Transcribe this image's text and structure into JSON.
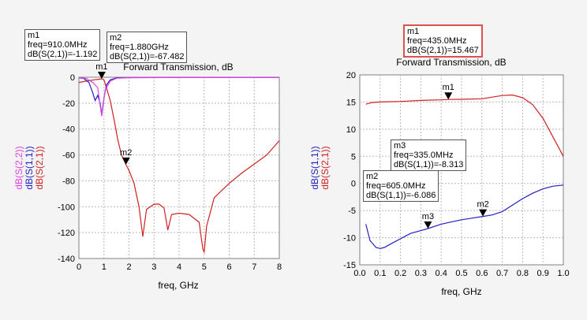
{
  "charts": [
    {
      "title": "Forward Transmission, dB",
      "xlabel": "freq, GHz",
      "ylabels": [
        {
          "text": "dB(S(2,2))",
          "color": "#e040e0"
        },
        {
          "text": "dB(S(1,1))",
          "color": "#2020c0"
        },
        {
          "text": "dB(S(2,1))",
          "color": "#d02020"
        }
      ],
      "x_ticks": [
        "0",
        "1",
        "2",
        "3",
        "4",
        "5",
        "6",
        "7",
        "8"
      ],
      "y_ticks": [
        "0",
        "-20",
        "-40",
        "-60",
        "-80",
        "-100",
        "-120",
        "-140"
      ],
      "markers": [
        {
          "name": "m1",
          "lines": [
            "m1",
            "freq=910.0MHz",
            "dB(S(2,1))=-1.192"
          ],
          "selected": false
        },
        {
          "name": "m2",
          "lines": [
            "m2",
            "freq=1.880GHz",
            "dB(S(2,1))=-67.482"
          ],
          "selected": false
        }
      ]
    },
    {
      "title": "Forward Transmission, dB",
      "xlabel": "freq, GHz",
      "ylabels": [
        {
          "text": "dB(S(1,1))",
          "color": "#2020c0"
        },
        {
          "text": "dB(S(2,1))",
          "color": "#d02020"
        }
      ],
      "x_ticks": [
        "0.0",
        "0.1",
        "0.2",
        "0.3",
        "0.4",
        "0.5",
        "0.6",
        "0.7",
        "0.8",
        "0.9",
        "1.0"
      ],
      "y_ticks": [
        "20",
        "15",
        "10",
        "5",
        "0",
        "-5",
        "-10",
        "-15"
      ],
      "markers": [
        {
          "name": "m1",
          "lines": [
            "m1",
            "freq=435.0MHz",
            "dB(S(2,1))=15.467"
          ],
          "selected": true
        },
        {
          "name": "m3",
          "lines": [
            "m3",
            "freq=335.0MHz",
            "dB(S(1,1))=-8.313"
          ],
          "selected": false
        },
        {
          "name": "m2",
          "lines": [
            "m2",
            "freq=605.0MHz",
            "dB(S(1,1))=-6.086"
          ],
          "selected": false
        }
      ]
    }
  ],
  "chart_data": [
    {
      "type": "line",
      "title": "Forward Transmission, dB",
      "xlabel": "freq, GHz",
      "ylabel": "dB(S(2,2)) dB(S(1,1)) dB(S(2,1))",
      "xlim": [
        0,
        8
      ],
      "ylim": [
        -140,
        0
      ],
      "grid": true,
      "series": [
        {
          "name": "dB(S(2,1))",
          "color": "#d02020",
          "x": [
            0,
            0.3,
            0.6,
            0.8,
            0.91,
            1.0,
            1.1,
            1.25,
            1.4,
            1.55,
            1.7,
            1.8,
            1.88,
            2.0,
            2.2,
            2.4,
            2.55,
            2.7,
            3.0,
            3.2,
            3.4,
            3.55,
            3.7,
            4.0,
            4.4,
            4.8,
            4.95,
            5.0,
            5.1,
            5.4,
            6.0,
            6.5,
            7.0,
            7.5,
            8.0
          ],
          "y": [
            -4,
            -3,
            -2,
            -1.5,
            -1.192,
            -2,
            -8,
            -18,
            -32,
            -48,
            -60,
            -64,
            -67.482,
            -72,
            -82,
            -100,
            -123,
            -102,
            -98,
            -98,
            -101,
            -118,
            -106,
            -105,
            -106,
            -112,
            -133,
            -135,
            -115,
            -93,
            -82,
            -74,
            -67,
            -60,
            -49
          ]
        },
        {
          "name": "dB(S(1,1))",
          "color": "#2020c0",
          "x": [
            0,
            0.2,
            0.4,
            0.55,
            0.65,
            0.75,
            0.85,
            0.91,
            1.0,
            1.1,
            1.25,
            1.5,
            2.0,
            4.0,
            8.0
          ],
          "y": [
            -0.5,
            -1,
            -4,
            -12,
            -18,
            -14,
            -20,
            -29,
            -16,
            -6,
            -2,
            -0.5,
            -0.3,
            -0.2,
            -0.2
          ]
        },
        {
          "name": "dB(S(2,2))",
          "color": "#e040e0",
          "x": [
            0,
            0.3,
            0.55,
            0.75,
            0.91,
            1.05,
            1.25,
            1.5,
            2.0,
            8.0
          ],
          "y": [
            -0.3,
            -1,
            -4,
            -8,
            -30,
            -10,
            -3,
            -0.8,
            -0.3,
            -0.2
          ]
        }
      ],
      "markers": [
        {
          "name": "m1",
          "x": 0.91,
          "y": -1.192
        },
        {
          "name": "m2",
          "x": 1.88,
          "y": -67.482
        }
      ]
    },
    {
      "type": "line",
      "title": "Forward Transmission, dB",
      "xlabel": "freq, GHz",
      "ylabel": "dB(S(1,1)) dB(S(2,1))",
      "xlim": [
        0,
        1
      ],
      "ylim": [
        -15,
        20
      ],
      "grid": true,
      "series": [
        {
          "name": "dB(S(2,1))",
          "color": "#d02020",
          "x": [
            0.03,
            0.06,
            0.1,
            0.2,
            0.3,
            0.4,
            0.435,
            0.5,
            0.6,
            0.7,
            0.75,
            0.8,
            0.85,
            0.9,
            0.95,
            1.0
          ],
          "y": [
            14.6,
            14.9,
            15.0,
            15.1,
            15.3,
            15.4,
            15.467,
            15.5,
            15.6,
            16.2,
            16.3,
            15.8,
            14.5,
            12.0,
            8.5,
            5.0
          ]
        },
        {
          "name": "dB(S(1,1))",
          "color": "#2020c0",
          "x": [
            0.03,
            0.05,
            0.08,
            0.1,
            0.12,
            0.15,
            0.2,
            0.25,
            0.3,
            0.335,
            0.4,
            0.45,
            0.5,
            0.55,
            0.605,
            0.65,
            0.7,
            0.75,
            0.8,
            0.85,
            0.9,
            0.95,
            1.0
          ],
          "y": [
            -7.5,
            -10.5,
            -11.8,
            -12.0,
            -11.8,
            -11.2,
            -10.2,
            -9.2,
            -8.7,
            -8.313,
            -7.5,
            -7.1,
            -6.7,
            -6.4,
            -6.086,
            -5.8,
            -5.2,
            -4.0,
            -2.8,
            -1.8,
            -1.0,
            -0.5,
            -0.3
          ]
        }
      ],
      "markers": [
        {
          "name": "m1",
          "x": 0.435,
          "y": 15.467
        },
        {
          "name": "m3",
          "x": 0.335,
          "y": -8.313
        },
        {
          "name": "m2",
          "x": 0.605,
          "y": -6.086
        }
      ]
    }
  ]
}
